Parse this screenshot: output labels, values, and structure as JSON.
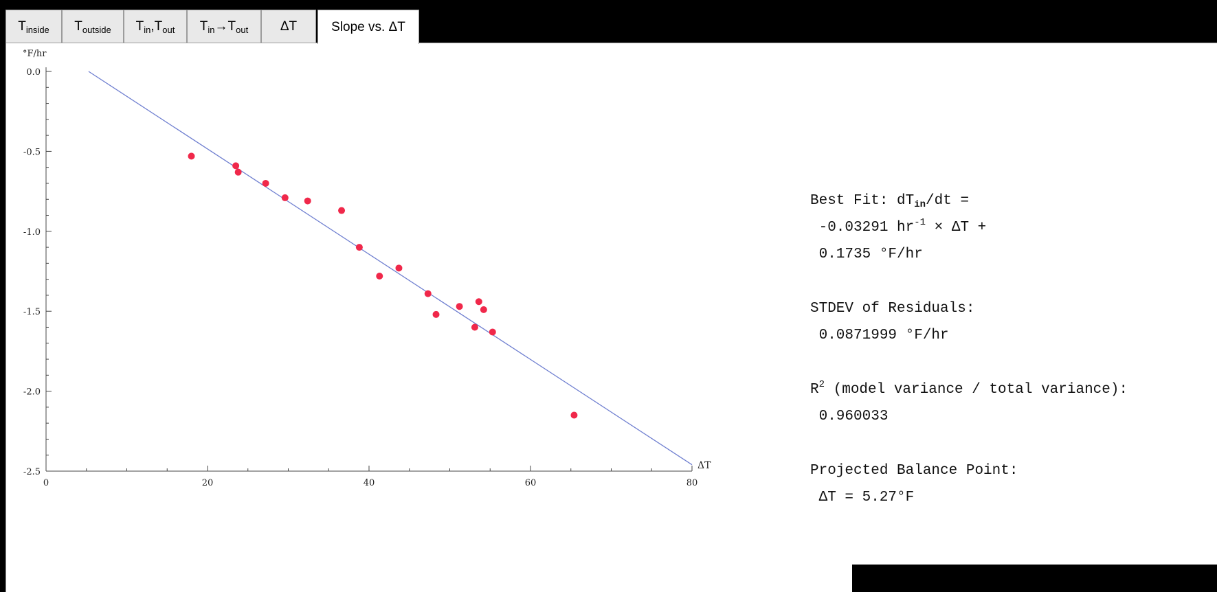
{
  "tabs": [
    {
      "base": "T",
      "sub": "inside",
      "active": false
    },
    {
      "base": "T",
      "sub": "outside",
      "active": false
    },
    {
      "base": "T",
      "sub": "in",
      "mid": ",T",
      "sub2": "out",
      "active": false
    },
    {
      "base": "T",
      "sub": "in",
      "mid": "→T",
      "sub2": "out",
      "active": false
    },
    {
      "base": "ΔT",
      "active": false
    },
    {
      "base": "Slope vs. ΔT",
      "active": true
    }
  ],
  "chart_data": {
    "type": "scatter",
    "xlabel": "ΔT",
    "ylabel": "°F/hr",
    "xlim": [
      0,
      80
    ],
    "ylim": [
      -2.5,
      0.0
    ],
    "x_ticks": [
      0,
      20,
      40,
      60,
      80
    ],
    "y_ticks": [
      0.0,
      -0.5,
      -1.0,
      -1.5,
      -2.0,
      -2.5
    ],
    "x_tick_labels": [
      "0",
      "20",
      "40",
      "60",
      "80"
    ],
    "y_tick_labels": [
      "0.0",
      "-0.5",
      "-1.0",
      "-1.5",
      "-2.0",
      "-2.5"
    ],
    "points": [
      {
        "x": 18.0,
        "y": -0.53
      },
      {
        "x": 23.5,
        "y": -0.59
      },
      {
        "x": 23.8,
        "y": -0.63
      },
      {
        "x": 27.2,
        "y": -0.7
      },
      {
        "x": 29.6,
        "y": -0.79
      },
      {
        "x": 32.4,
        "y": -0.81
      },
      {
        "x": 36.6,
        "y": -0.87
      },
      {
        "x": 38.8,
        "y": -1.1
      },
      {
        "x": 41.3,
        "y": -1.28
      },
      {
        "x": 43.7,
        "y": -1.23
      },
      {
        "x": 47.3,
        "y": -1.39
      },
      {
        "x": 48.3,
        "y": -1.52
      },
      {
        "x": 51.2,
        "y": -1.47
      },
      {
        "x": 53.1,
        "y": -1.6
      },
      {
        "x": 53.6,
        "y": -1.44
      },
      {
        "x": 54.2,
        "y": -1.49
      },
      {
        "x": 55.3,
        "y": -1.63
      },
      {
        "x": 65.4,
        "y": -2.15
      }
    ],
    "fit_line": {
      "x": [
        5.27,
        80
      ],
      "y": [
        0.0,
        -2.46
      ]
    },
    "point_color": "#f0284a",
    "line_color": "#6f7fd0",
    "grid": false
  },
  "stats": {
    "best_fit_label": "Best Fit: dT",
    "best_fit_sub": "in",
    "best_fit_tail": "/dt =",
    "best_fit_line2_a": " -0.03291 hr",
    "best_fit_line2_sup": "-1",
    "best_fit_line2_b": " × ΔT +",
    "best_fit_line3": " 0.1735 °F/hr",
    "stdev_label": "STDEV of Residuals:",
    "stdev_value": " 0.0871999 °F/hr",
    "r2_label_base": "R",
    "r2_label_sup": "2",
    "r2_label_tail": " (model variance / total variance):",
    "r2_value": " 0.960033",
    "balance_label": "Projected Balance Point:",
    "balance_value": " ΔT = 5.27°F"
  }
}
